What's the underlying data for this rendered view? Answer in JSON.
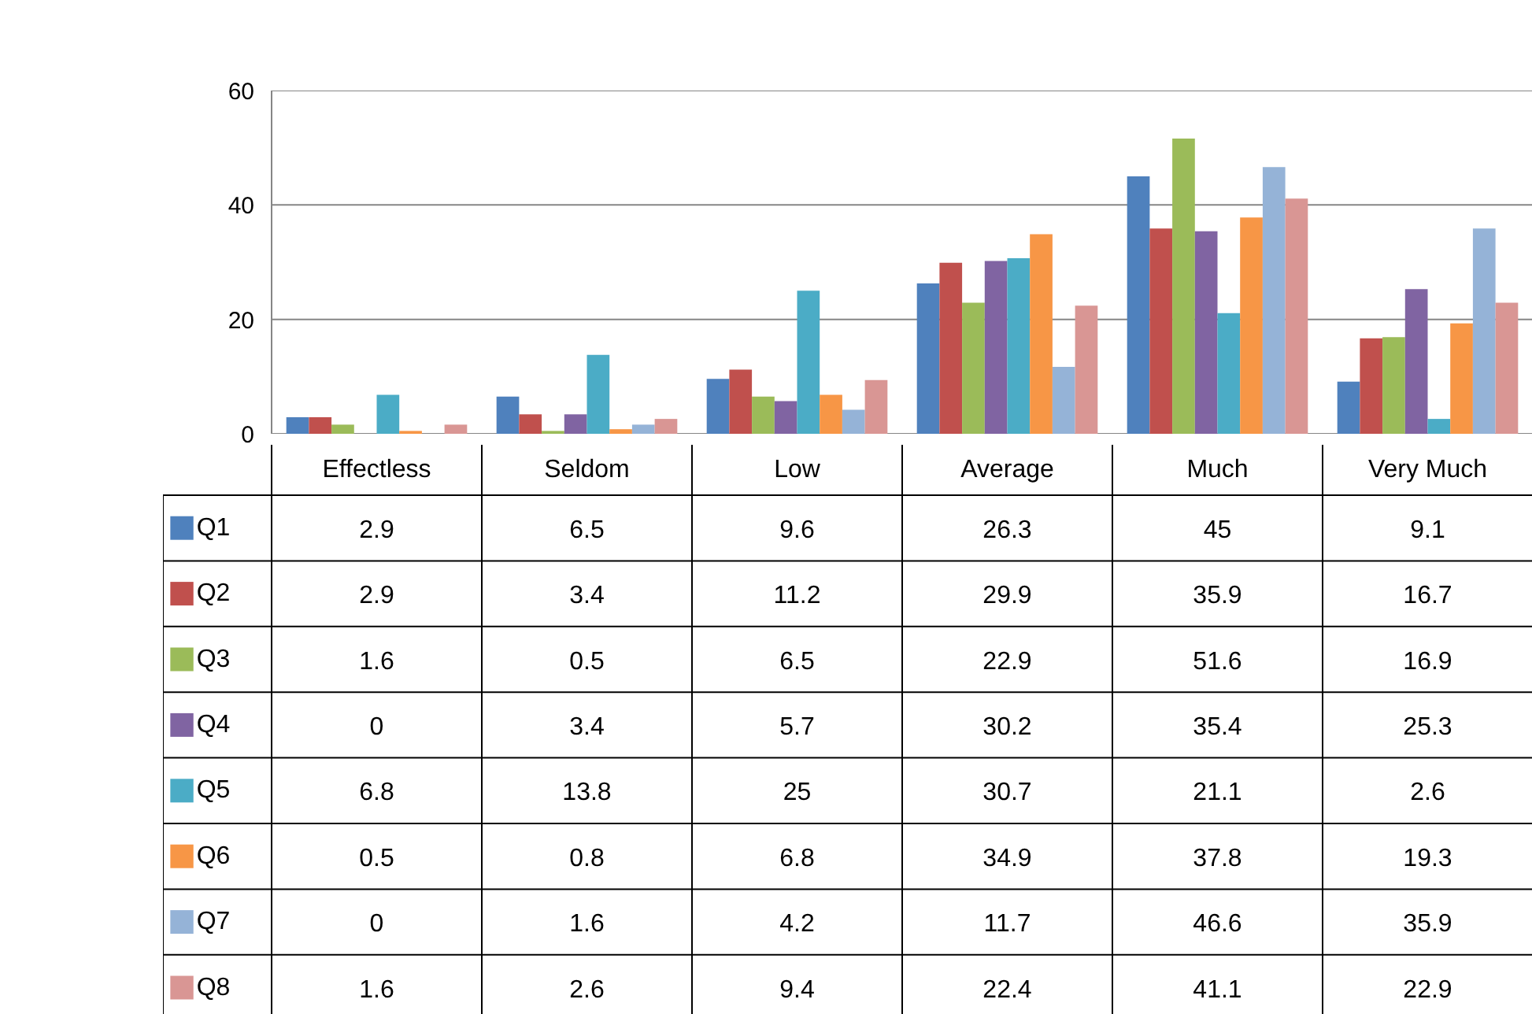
{
  "chart_data": {
    "type": "bar",
    "categories": [
      "Effectless",
      "Seldom",
      "Low",
      "Average",
      "Much",
      "Very Much"
    ],
    "series": [
      {
        "name": "Q1",
        "color": "#4f81bd",
        "values": [
          2.9,
          6.5,
          9.6,
          26.3,
          45,
          9.1
        ]
      },
      {
        "name": "Q2",
        "color": "#c0504d",
        "values": [
          2.9,
          3.4,
          11.2,
          29.9,
          35.9,
          16.7
        ]
      },
      {
        "name": "Q3",
        "color": "#9bbb59",
        "values": [
          1.6,
          0.5,
          6.5,
          22.9,
          51.6,
          16.9
        ]
      },
      {
        "name": "Q4",
        "color": "#8064a2",
        "values": [
          0,
          3.4,
          5.7,
          30.2,
          35.4,
          25.3
        ]
      },
      {
        "name": "Q5",
        "color": "#4bacc6",
        "values": [
          6.8,
          13.8,
          25,
          30.7,
          21.1,
          2.6
        ]
      },
      {
        "name": "Q6",
        "color": "#f79646",
        "values": [
          0.5,
          0.8,
          6.8,
          34.9,
          37.8,
          19.3
        ]
      },
      {
        "name": "Q7",
        "color": "#95b3d7",
        "values": [
          0,
          1.6,
          4.2,
          11.7,
          46.6,
          35.9
        ]
      },
      {
        "name": "Q8",
        "color": "#d99694",
        "values": [
          1.6,
          2.6,
          9.4,
          22.4,
          41.1,
          22.9
        ]
      }
    ],
    "ylim": [
      0,
      60
    ],
    "yticks": [
      0,
      20,
      40,
      60
    ],
    "grid": "y",
    "legend": "bottom",
    "data_labels": true
  }
}
